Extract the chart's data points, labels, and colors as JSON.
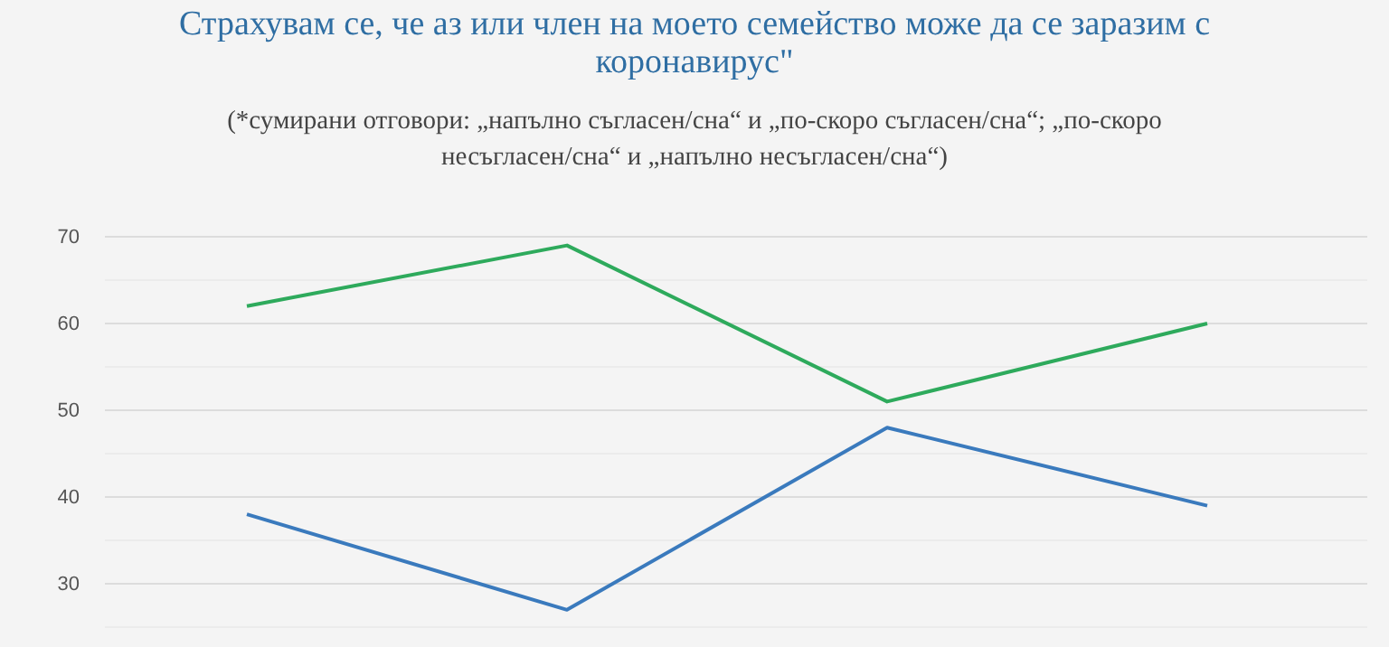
{
  "chart_data": {
    "type": "line",
    "title": "Страхувам се, че аз или член на моето семейство може да се заразим с коронавирус\"",
    "subtitle": "(*сумирани отговори: „напълно съгласен/сна“ и „по-скоро съгласен/сна“; „по-скоро несъгласен/сна“ и „напълно несъгласен/сна“)",
    "categories": [
      null,
      null,
      null,
      null
    ],
    "series": [
      {
        "color": "#2eaa5c",
        "values": [
          62,
          69,
          51,
          60
        ]
      },
      {
        "color": "#3a7abd",
        "values": [
          38,
          27,
          48,
          39
        ]
      }
    ],
    "ylim": [
      25,
      70
    ],
    "yticks": [
      {
        "value": 25,
        "label": null
      },
      30,
      {
        "value": 35,
        "label": null
      },
      40,
      {
        "value": 45,
        "label": null
      },
      50,
      {
        "value": 55,
        "label": null
      },
      60,
      {
        "value": 65,
        "label": null
      },
      70
    ],
    "grid": true,
    "tick_labels": "y",
    "marker": "none",
    "line_style": "solid"
  }
}
